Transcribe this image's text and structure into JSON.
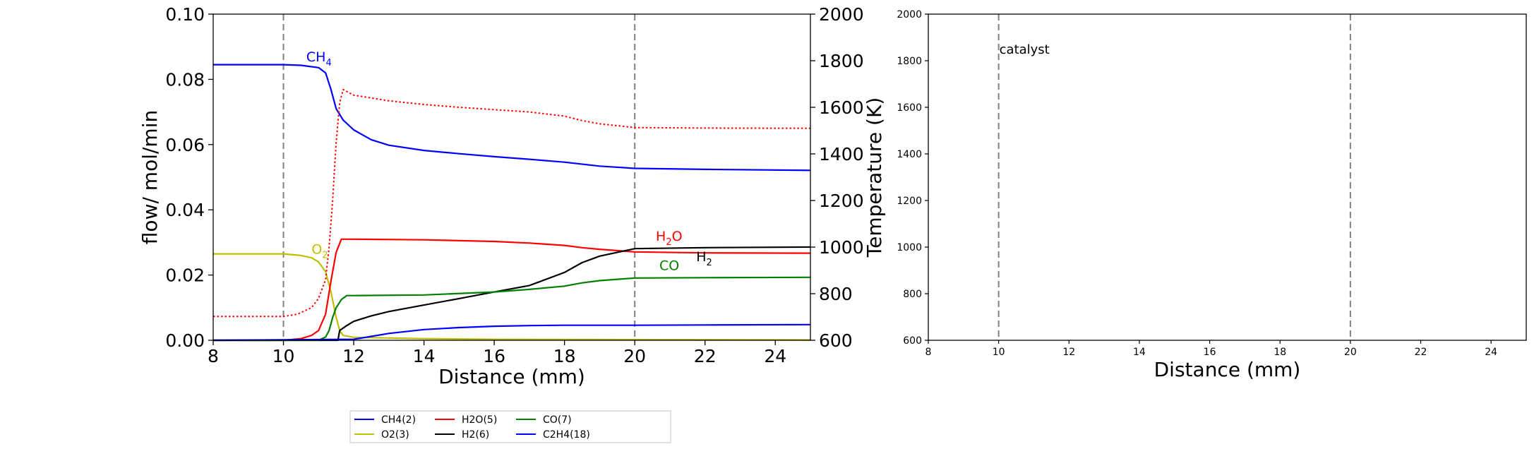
{
  "chart_data": [
    {
      "type": "line",
      "xlabel": "Distance (mm)",
      "ylabel": "flow/ mol/min",
      "ylabel_right": "Temperature (K)",
      "xlim": [
        8,
        25
      ],
      "ylim": [
        0,
        0.1
      ],
      "ylim_right": [
        600,
        2000
      ],
      "xticks": [
        "8",
        "10",
        "12",
        "14",
        "16",
        "18",
        "20",
        "22",
        "24"
      ],
      "yticks": [
        "0.00",
        "0.02",
        "0.04",
        "0.06",
        "0.08",
        "0.10"
      ],
      "yticks_right": [
        "600",
        "800",
        "1000",
        "1200",
        "1400",
        "1600",
        "1800",
        "2000"
      ],
      "vlines": [
        10,
        20
      ],
      "colors": {
        "CH4": "#0000ff",
        "O2": "#bfbf00",
        "H2O": "#ff0000",
        "H2": "#000000",
        "CO": "#008000",
        "C2H4": "#0000ff",
        "temperature": "#ff0000",
        "vline": "#808080"
      },
      "series": [
        {
          "name": "CH4(2)",
          "key": "CH4",
          "x": [
            8,
            10,
            10.5,
            11,
            11.2,
            11.35,
            11.5,
            11.7,
            12,
            12.5,
            13,
            14,
            15,
            16,
            17,
            18,
            19,
            20,
            22,
            25
          ],
          "y": [
            0.0845,
            0.0845,
            0.0843,
            0.0836,
            0.082,
            0.077,
            0.071,
            0.0675,
            0.0645,
            0.0615,
            0.0598,
            0.0582,
            0.0572,
            0.0563,
            0.0555,
            0.0546,
            0.0534,
            0.0527,
            0.0524,
            0.0521
          ]
        },
        {
          "name": "O2(3)",
          "key": "O2",
          "x": [
            8,
            10,
            10.5,
            10.8,
            11,
            11.2,
            11.35,
            11.5,
            11.6,
            11.7,
            12,
            14,
            16,
            25
          ],
          "y": [
            0.0265,
            0.0265,
            0.026,
            0.0253,
            0.024,
            0.021,
            0.015,
            0.007,
            0.003,
            0.0015,
            0.0009,
            0.0005,
            0.0003,
            0.0001
          ]
        },
        {
          "name": "H2O(5)",
          "key": "H2O",
          "x": [
            8,
            10,
            10.5,
            10.8,
            11,
            11.2,
            11.35,
            11.5,
            11.65,
            11.8,
            12,
            14,
            16,
            17,
            18,
            18.5,
            19,
            20,
            22,
            25
          ],
          "y": [
            0,
            0,
            0.0005,
            0.0015,
            0.003,
            0.008,
            0.018,
            0.027,
            0.031,
            0.031,
            0.031,
            0.0308,
            0.0303,
            0.0298,
            0.0291,
            0.0284,
            0.0279,
            0.0271,
            0.0268,
            0.0267
          ]
        },
        {
          "name": "H2(6)",
          "key": "H2",
          "x": [
            8,
            11.55,
            11.6,
            11.8,
            12,
            12.5,
            13,
            14,
            15,
            16,
            17,
            18,
            18.5,
            19,
            20,
            22,
            25
          ],
          "y": [
            0,
            0,
            0.003,
            0.0045,
            0.0058,
            0.0075,
            0.0088,
            0.0108,
            0.0128,
            0.0148,
            0.0168,
            0.0208,
            0.0238,
            0.0258,
            0.0281,
            0.0284,
            0.0286
          ]
        },
        {
          "name": "CO(7)",
          "key": "CO",
          "x": [
            8,
            11,
            11.2,
            11.3,
            11.4,
            11.5,
            11.65,
            11.8,
            12,
            14,
            16,
            17,
            18,
            18.5,
            19,
            20,
            22,
            25
          ],
          "y": [
            0,
            0,
            0.001,
            0.003,
            0.007,
            0.01,
            0.0125,
            0.0137,
            0.0137,
            0.0139,
            0.0148,
            0.0156,
            0.0166,
            0.0176,
            0.0183,
            0.0191,
            0.0192,
            0.0193
          ]
        },
        {
          "name": "C2H4(18)",
          "key": "C2H4",
          "x": [
            8,
            12,
            12.5,
            13,
            14,
            15,
            16,
            17,
            18,
            20,
            22,
            25
          ],
          "y": [
            0,
            0.0003,
            0.0012,
            0.0021,
            0.0033,
            0.0039,
            0.0043,
            0.0045,
            0.0046,
            0.0046,
            0.0047,
            0.0048
          ]
        },
        {
          "name": "",
          "key": "temperature",
          "axis": "right",
          "dashed": true,
          "x": [
            8,
            10,
            10.4,
            10.8,
            11,
            11.2,
            11.3,
            11.4,
            11.5,
            11.6,
            11.7,
            12,
            13,
            14,
            15,
            16,
            17,
            18,
            18.5,
            19,
            20,
            22,
            25
          ],
          "y": [
            702,
            702,
            712,
            740,
            780,
            860,
            1000,
            1200,
            1450,
            1620,
            1676,
            1652,
            1628,
            1612,
            1600,
            1590,
            1580,
            1562,
            1543,
            1529,
            1513,
            1511,
            1510
          ]
        }
      ],
      "annotations": [
        {
          "text": "CH",
          "sub": "4",
          "x": 10.65,
          "y": 0.0855,
          "color": "#0000ff"
        },
        {
          "text": "O",
          "sub": "2",
          "x": 10.8,
          "y": 0.0265,
          "color": "#bfbf00"
        },
        {
          "text": "H",
          "sub": "2",
          "tail": "O",
          "x": 20.6,
          "y": 0.0305,
          "color": "#ff0000"
        },
        {
          "text": "CO",
          "x": 20.7,
          "y": 0.0215,
          "color": "#008000"
        },
        {
          "text": "H",
          "sub": "2",
          "x": 21.75,
          "y": 0.0242,
          "color": "#000000"
        }
      ],
      "legend": {
        "placement": "below",
        "entries": [
          {
            "label": "CH4(2)",
            "color": "#0000ff"
          },
          {
            "label": "O2(3)",
            "color": "#bfbf00"
          },
          {
            "label": "H2O(5)",
            "color": "#ff0000"
          },
          {
            "label": "H2(6)",
            "color": "#000000"
          },
          {
            "label": "CO(7)",
            "color": "#008000"
          },
          {
            "label": "C2H4(18)",
            "color": "#0000ff"
          }
        ]
      }
    },
    {
      "type": "line",
      "xlabel": "Distance (mm)",
      "xlim": [
        8,
        25
      ],
      "ylim": [
        600,
        2000
      ],
      "xticks": [
        "8",
        "10",
        "12",
        "14",
        "16",
        "18",
        "20",
        "22",
        "24"
      ],
      "yticks": [
        "600",
        "800",
        "1000",
        "1200",
        "1400",
        "1600",
        "1800",
        "2000"
      ],
      "vlines": [
        10,
        20
      ],
      "annotations": [
        {
          "text": "catalyst",
          "x": 10,
          "y": 1830
        }
      ],
      "series": []
    }
  ]
}
